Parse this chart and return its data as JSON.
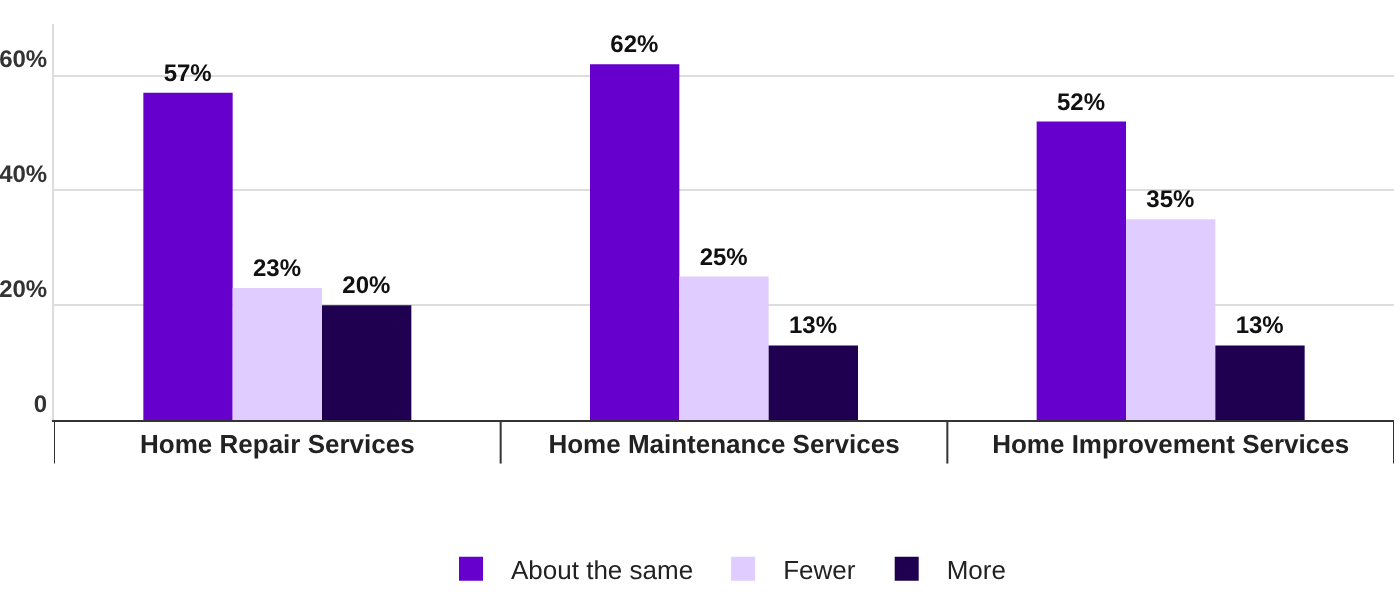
{
  "chart_data": {
    "type": "bar",
    "categories": [
      "Home Repair Services",
      "Home Maintenance Services",
      "Home Improvement Services"
    ],
    "series": [
      {
        "name": "About the same",
        "color": "#6600cc",
        "values": [
          57,
          62,
          52
        ],
        "value_labels": [
          "57%",
          "62%",
          "52%"
        ]
      },
      {
        "name": "Fewer",
        "color": "#e0ccff",
        "values": [
          23,
          25,
          35
        ],
        "value_labels": [
          "23%",
          "25%",
          "35%"
        ]
      },
      {
        "name": "More",
        "color": "#1f0050",
        "values": [
          20,
          13,
          13
        ],
        "value_labels": [
          "20%",
          "13%",
          "13%"
        ]
      }
    ],
    "ylim": [
      0,
      69
    ],
    "yticks": [
      0,
      {
        "value": 20,
        "label": "20%"
      },
      {
        "value": 40,
        "label": "40%"
      },
      {
        "value": 60,
        "label": "60%"
      }
    ],
    "grid": "y",
    "legend": "bottom"
  }
}
